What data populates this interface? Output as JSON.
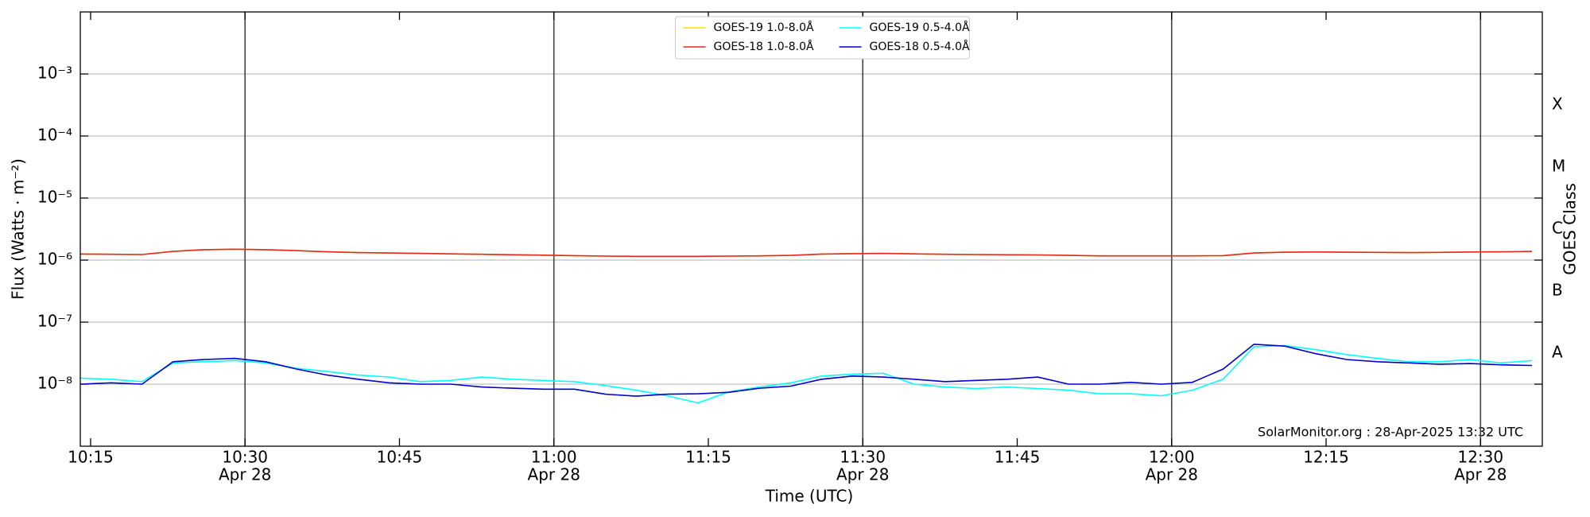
{
  "chart_data": {
    "type": "line",
    "x_label": "Time (UTC)",
    "y_label": "Flux (Watts · m⁻²)",
    "y2_label": "GOES Class",
    "annotation": "SolarMonitor.org : 28-Apr-2025 13:32 UTC",
    "log_y": true,
    "grid": true,
    "legend": "upper center",
    "xlim": [
      "10:14",
      "12:36"
    ],
    "xticks": [
      {
        "value": "10:15",
        "label": "10:15"
      },
      {
        "value": "10:30",
        "label": "10:30",
        "date": "Apr 28"
      },
      {
        "value": "10:45",
        "label": "10:45"
      },
      {
        "value": "11:00",
        "label": "11:00",
        "date": "Apr 28"
      },
      {
        "value": "11:15",
        "label": "11:15"
      },
      {
        "value": "11:30",
        "label": "11:30",
        "date": "Apr 28"
      },
      {
        "value": "11:45",
        "label": "11:45"
      },
      {
        "value": "12:00",
        "label": "12:00",
        "date": "Apr 28"
      },
      {
        "value": "12:15",
        "label": "12:15"
      },
      {
        "value": "12:30",
        "label": "12:30",
        "date": "Apr 28"
      }
    ],
    "ylim": [
      1e-09,
      0.01
    ],
    "yticks": [
      {
        "value": 1e-08,
        "label": "10⁻⁸"
      },
      {
        "value": 1e-07,
        "label": "10⁻⁷"
      },
      {
        "value": 1e-06,
        "label": "10⁻⁶"
      },
      {
        "value": 1e-05,
        "label": "10⁻⁵"
      },
      {
        "value": 0.0001,
        "label": "10⁻⁴"
      },
      {
        "value": 0.001,
        "label": "10⁻³"
      }
    ],
    "y2lim": [
      1e-09,
      0.01
    ],
    "y2ticks": [
      {
        "value": 3.16e-08,
        "label": "A"
      },
      {
        "value": 3.16e-07,
        "label": "B"
      },
      {
        "value": 3.16e-06,
        "label": "C"
      },
      {
        "value": 3.16e-05,
        "label": "M"
      },
      {
        "value": 0.000316,
        "label": "X"
      }
    ],
    "x": [
      "10:14",
      "10:17",
      "10:20",
      "10:23",
      "10:26",
      "10:29",
      "10:32",
      "10:35",
      "10:38",
      "10:41",
      "10:44",
      "10:47",
      "10:50",
      "10:53",
      "10:56",
      "10:59",
      "11:02",
      "11:05",
      "11:08",
      "11:11",
      "11:14",
      "11:17",
      "11:20",
      "11:23",
      "11:26",
      "11:29",
      "11:32",
      "11:35",
      "11:38",
      "11:41",
      "11:44",
      "11:47",
      "11:50",
      "11:53",
      "11:56",
      "11:59",
      "12:02",
      "12:05",
      "12:08",
      "12:11",
      "12:14",
      "12:17",
      "12:20",
      "12:23",
      "12:26",
      "12:29",
      "12:32",
      "12:35"
    ],
    "series": [
      {
        "name": "GOES-19 1.0-8.0Å",
        "color": "#ffd700",
        "values": [
          1.25e-06,
          1.24e-06,
          1.23e-06,
          1.38e-06,
          1.47e-06,
          1.5e-06,
          1.47e-06,
          1.42e-06,
          1.36e-06,
          1.32e-06,
          1.3e-06,
          1.28e-06,
          1.26e-06,
          1.24e-06,
          1.22e-06,
          1.2e-06,
          1.18e-06,
          1.16e-06,
          1.15e-06,
          1.15e-06,
          1.15e-06,
          1.16e-06,
          1.17e-06,
          1.19e-06,
          1.25e-06,
          1.27e-06,
          1.28e-06,
          1.26e-06,
          1.24e-06,
          1.23e-06,
          1.22e-06,
          1.21e-06,
          1.19e-06,
          1.17e-06,
          1.17e-06,
          1.17e-06,
          1.17e-06,
          1.18e-06,
          1.3e-06,
          1.34e-06,
          1.35e-06,
          1.34e-06,
          1.33e-06,
          1.32e-06,
          1.33e-06,
          1.35e-06,
          1.36e-06,
          1.38e-06
        ]
      },
      {
        "name": "GOES-18 1.0-8.0Å",
        "color": "#e8281e",
        "values": [
          1.25e-06,
          1.24e-06,
          1.23e-06,
          1.38e-06,
          1.47e-06,
          1.5e-06,
          1.47e-06,
          1.42e-06,
          1.36e-06,
          1.32e-06,
          1.3e-06,
          1.28e-06,
          1.26e-06,
          1.24e-06,
          1.22e-06,
          1.2e-06,
          1.18e-06,
          1.16e-06,
          1.15e-06,
          1.15e-06,
          1.15e-06,
          1.16e-06,
          1.17e-06,
          1.19e-06,
          1.25e-06,
          1.27e-06,
          1.28e-06,
          1.26e-06,
          1.24e-06,
          1.23e-06,
          1.22e-06,
          1.21e-06,
          1.19e-06,
          1.17e-06,
          1.17e-06,
          1.17e-06,
          1.17e-06,
          1.18e-06,
          1.3e-06,
          1.34e-06,
          1.35e-06,
          1.34e-06,
          1.33e-06,
          1.32e-06,
          1.33e-06,
          1.35e-06,
          1.36e-06,
          1.38e-06
        ]
      },
      {
        "name": "GOES-19 0.5-4.0Å",
        "color": "#00ffff",
        "values": [
          1.25e-08,
          1.2e-08,
          1.1e-08,
          2.2e-08,
          2.3e-08,
          2.4e-08,
          2.2e-08,
          1.8e-08,
          1.6e-08,
          1.4e-08,
          1.3e-08,
          1.1e-08,
          1.15e-08,
          1.3e-08,
          1.2e-08,
          1.15e-08,
          1.1e-08,
          9.5e-09,
          8e-09,
          6.5e-09,
          5e-09,
          7.5e-09,
          9e-09,
          1.05e-08,
          1.35e-08,
          1.45e-08,
          1.5e-08,
          1e-08,
          9e-09,
          8.5e-09,
          9e-09,
          8.5e-09,
          8e-09,
          7e-09,
          7e-09,
          6.5e-09,
          8e-09,
          1.2e-08,
          4e-08,
          4.2e-08,
          3.6e-08,
          3e-08,
          2.6e-08,
          2.3e-08,
          2.3e-08,
          2.5e-08,
          2.2e-08,
          2.4e-08
        ]
      },
      {
        "name": "GOES-18 0.5-4.0Å",
        "color": "#0000cc",
        "values": [
          1e-08,
          1.05e-08,
          1e-08,
          2.3e-08,
          2.5e-08,
          2.6e-08,
          2.3e-08,
          1.75e-08,
          1.4e-08,
          1.2e-08,
          1.05e-08,
          1e-08,
          1e-08,
          9e-09,
          8.6e-09,
          8.3e-09,
          8.3e-09,
          6.9e-09,
          6.4e-09,
          6.9e-09,
          7e-09,
          7.4e-09,
          8.6e-09,
          9.3e-09,
          1.2e-08,
          1.35e-08,
          1.3e-08,
          1.2e-08,
          1.1e-08,
          1.15e-08,
          1.2e-08,
          1.3e-08,
          1e-08,
          1e-08,
          1.07e-08,
          1e-08,
          1.07e-08,
          1.75e-08,
          4.4e-08,
          4.1e-08,
          3.1e-08,
          2.5e-08,
          2.3e-08,
          2.2e-08,
          2.1e-08,
          2.15e-08,
          2.05e-08,
          2e-08
        ]
      }
    ]
  }
}
